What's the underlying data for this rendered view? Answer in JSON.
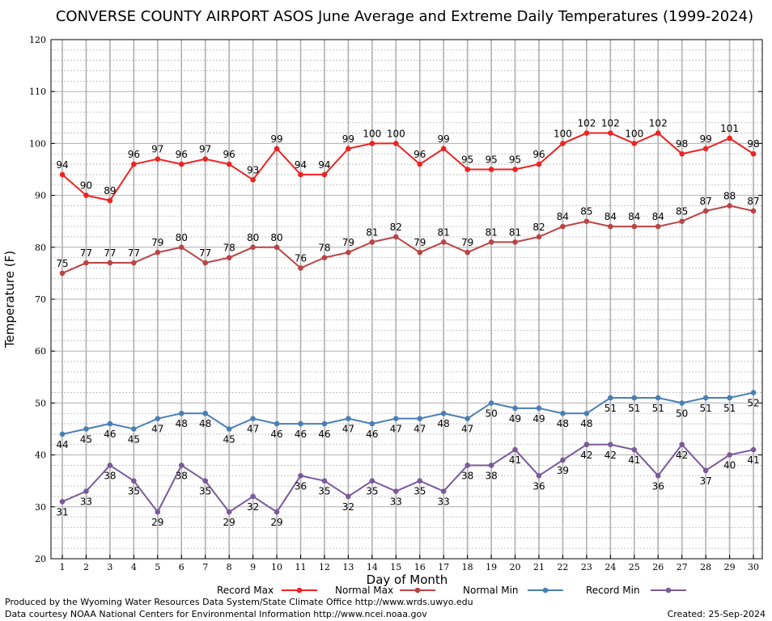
{
  "chart_data": {
    "type": "line",
    "title": "CONVERSE COUNTY AIRPORT ASOS June Average and Extreme Daily Temperatures (1999-2024)",
    "xlabel": "Day of Month",
    "ylabel": "Temperature (F)",
    "x": [
      1,
      2,
      3,
      4,
      5,
      6,
      7,
      8,
      9,
      10,
      11,
      12,
      13,
      14,
      15,
      16,
      17,
      18,
      19,
      20,
      21,
      22,
      23,
      24,
      25,
      26,
      27,
      28,
      29,
      30
    ],
    "xlim": [
      1,
      30
    ],
    "ylim": [
      20,
      120
    ],
    "yticks": [
      20,
      30,
      40,
      50,
      60,
      70,
      80,
      90,
      100,
      110,
      120
    ],
    "grid": true,
    "legend_position": "bottom",
    "series": [
      {
        "name": "Record Max",
        "color": "#ee2222",
        "label_pos": "above",
        "values": [
          94,
          90,
          89,
          96,
          97,
          96,
          97,
          96,
          93,
          99,
          94,
          94,
          99,
          100,
          100,
          96,
          99,
          95,
          95,
          95,
          96,
          100,
          102,
          102,
          100,
          102,
          98,
          99,
          101,
          98
        ]
      },
      {
        "name": "Normal Max",
        "color": "#bb4444",
        "label_pos": "above",
        "values": [
          75,
          77,
          77,
          77,
          79,
          80,
          77,
          78,
          80,
          80,
          76,
          78,
          79,
          81,
          82,
          79,
          81,
          79,
          81,
          81,
          82,
          84,
          85,
          84,
          84,
          84,
          85,
          87,
          88,
          87
        ]
      },
      {
        "name": "Normal Min",
        "color": "#4a7fb5",
        "label_pos": "below",
        "values": [
          44,
          45,
          46,
          45,
          47,
          48,
          48,
          45,
          47,
          46,
          46,
          46,
          47,
          46,
          47,
          47,
          48,
          47,
          50,
          49,
          49,
          48,
          48,
          51,
          51,
          51,
          50,
          51,
          51,
          52
        ]
      },
      {
        "name": "Record Min",
        "color": "#7a5a9a",
        "label_pos": "below",
        "values": [
          31,
          33,
          38,
          35,
          29,
          38,
          35,
          29,
          32,
          29,
          36,
          35,
          32,
          35,
          33,
          35,
          33,
          38,
          38,
          41,
          36,
          39,
          42,
          42,
          41,
          36,
          42,
          37,
          40,
          41
        ]
      }
    ]
  },
  "footer": {
    "produced_by": "Produced by the Wyoming Water Resources Data System/State Climate Office http://www.wrds.uwyo.edu",
    "data_courtesy": "Data courtesy NOAA National Centers for Environmental Information http://www.ncei.noaa.gov",
    "created": "Created:  25-Sep-2024"
  }
}
